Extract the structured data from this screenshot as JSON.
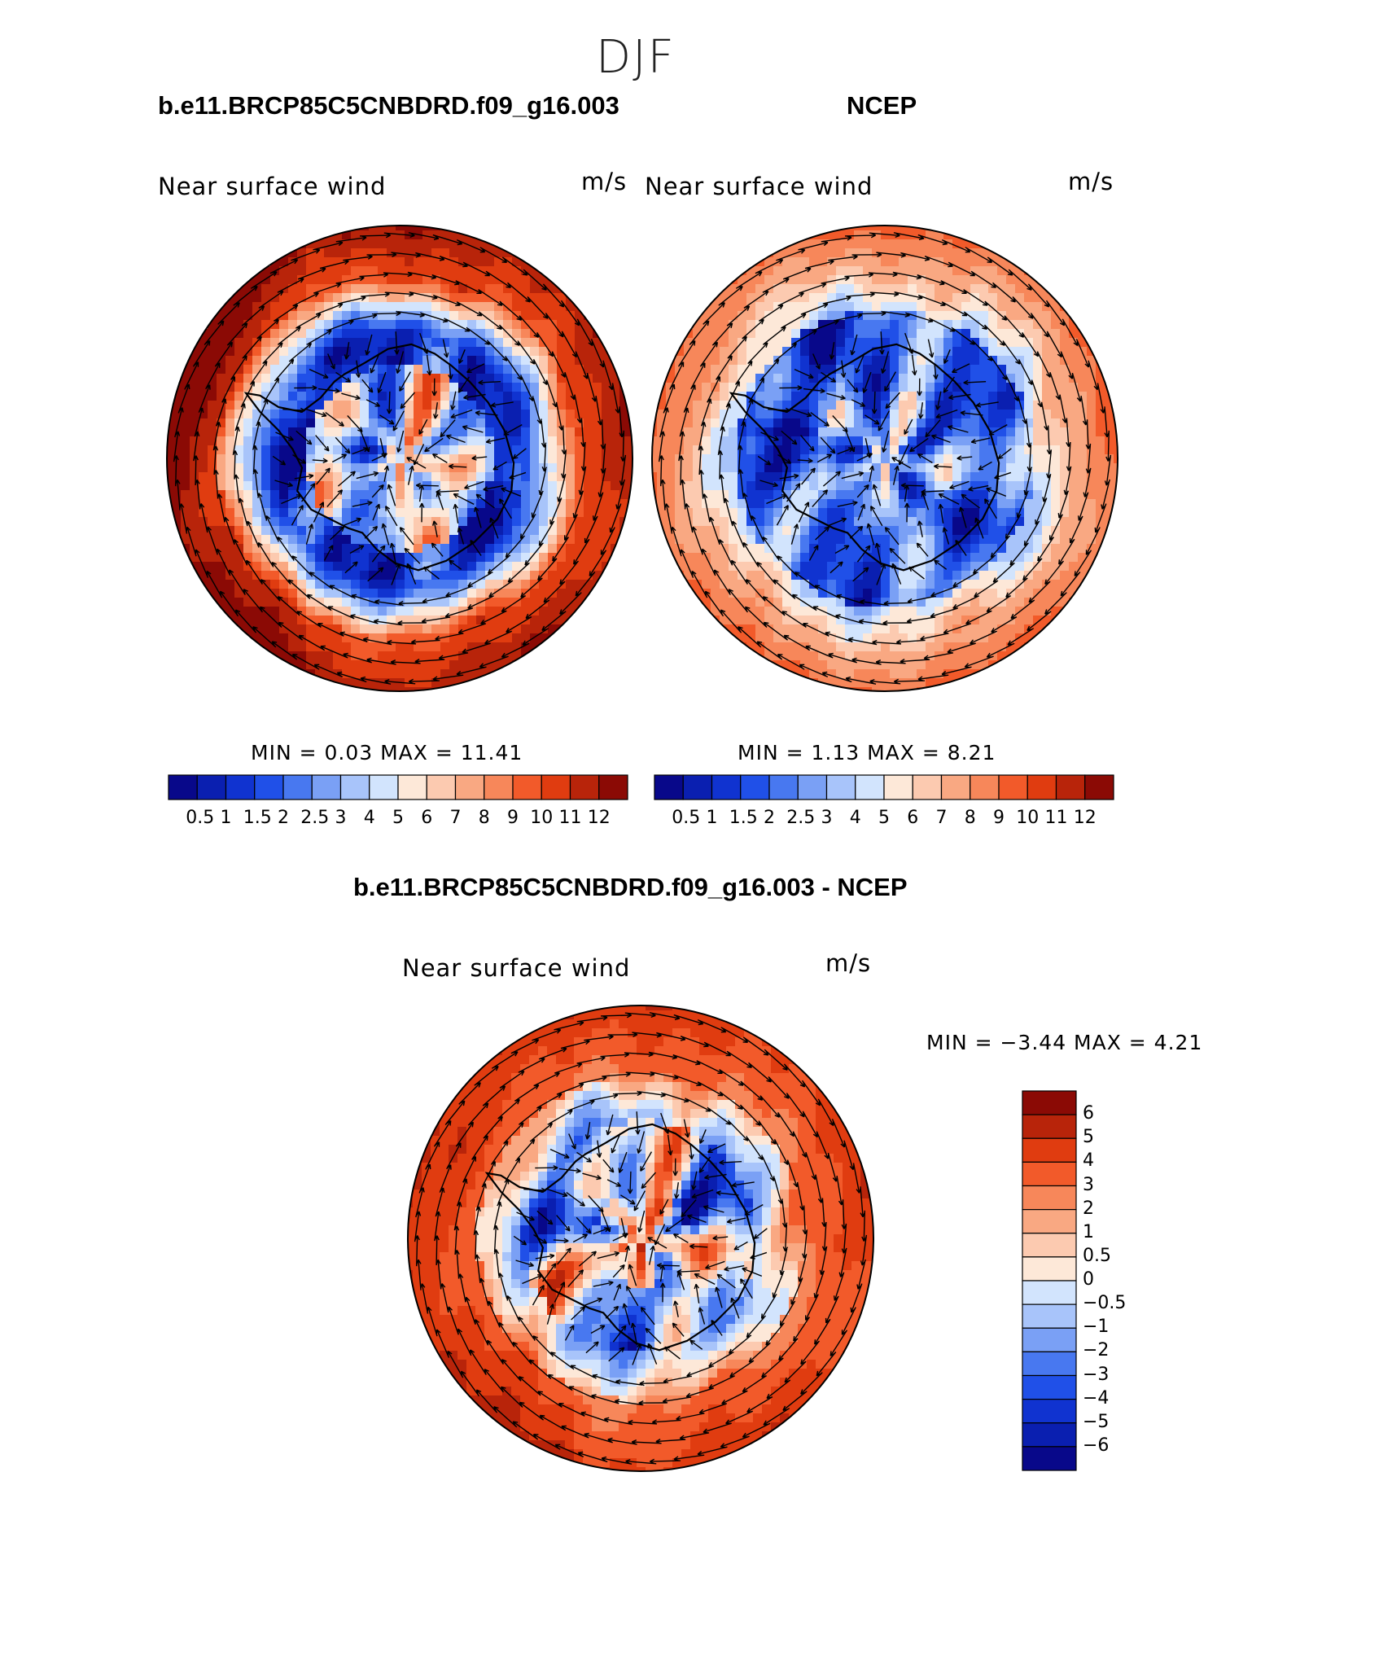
{
  "suptitle": "DJF",
  "panels": [
    {
      "id": "model",
      "case": "b.e11.BRCP85C5CNBDRD.f09_g16.003",
      "variable": "Near surface wind",
      "units": "m/s",
      "min_max": "MIN =    0.03 MAX =   11.41"
    },
    {
      "id": "obs",
      "case": "NCEP",
      "variable": "Near surface wind",
      "units": "m/s",
      "min_max": "MIN =    1.13 MAX =    8.21"
    },
    {
      "id": "diff",
      "case": "b.e11.BRCP85C5CNBDRD.f09_g16.003 - NCEP",
      "variable": "Near surface wind",
      "units": "m/s",
      "min_max": "MIN =  −3.44 MAX =    4.21"
    }
  ],
  "colorbars": {
    "abs": {
      "labels": [
        "0.5",
        "1",
        "1.5",
        "2",
        "2.5",
        "3",
        "4",
        "5",
        "6",
        "7",
        "8",
        "9",
        "10",
        "11",
        "12"
      ],
      "colors": [
        "#08088a",
        "#0a1fb0",
        "#1033d0",
        "#2050e8",
        "#4878f0",
        "#7aa0f5",
        "#a8c4fa",
        "#d2e4fd",
        "#fde8d8",
        "#fccab0",
        "#f9a882",
        "#f7875a",
        "#f25a2a",
        "#e03c10",
        "#b8240a",
        "#8b0a05"
      ]
    },
    "diff": {
      "labels": [
        "6",
        "5",
        "4",
        "3",
        "2",
        "1",
        "0.5",
        "0",
        "−0.5",
        "−1",
        "−2",
        "−3",
        "−4",
        "−5",
        "−6"
      ],
      "colors": [
        "#8b0a05",
        "#b8240a",
        "#e03c10",
        "#f25a2a",
        "#f7875a",
        "#f9a882",
        "#fccab0",
        "#fde8d8",
        "#d2e4fd",
        "#a8c4fa",
        "#7aa0f5",
        "#4878f0",
        "#2050e8",
        "#1033d0",
        "#0a1fb0",
        "#08088a"
      ]
    }
  }
}
